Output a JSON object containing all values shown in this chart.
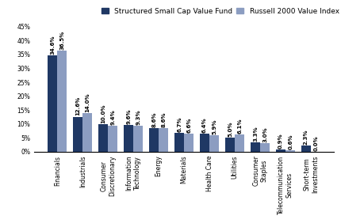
{
  "categories": [
    "Financials",
    "Industrials",
    "Consumer\nDiscretionary",
    "Information\nTechnology",
    "Energy",
    "Materials",
    "Health Care",
    "Utilities",
    "Consumer\nStaples",
    "Telecommunication\nServices",
    "Short-term\nInvestments"
  ],
  "fund_values": [
    34.6,
    12.6,
    10.0,
    9.6,
    8.6,
    6.7,
    6.4,
    5.0,
    3.3,
    0.9,
    2.3
  ],
  "benchmark_values": [
    36.5,
    14.0,
    9.4,
    9.3,
    8.6,
    6.6,
    5.9,
    6.1,
    3.0,
    0.6,
    0.0
  ],
  "fund_color": "#1F3864",
  "benchmark_color": "#8C9DC1",
  "fund_label": "Structured Small Cap Value Fund",
  "benchmark_label": "Russell 2000 Value Index",
  "ylim": [
    0,
    45
  ],
  "yticks": [
    0,
    5,
    10,
    15,
    20,
    25,
    30,
    35,
    40,
    45
  ],
  "ytick_labels": [
    "0%",
    "5%",
    "10%",
    "15%",
    "20%",
    "25%",
    "30%",
    "35%",
    "40%",
    "45%"
  ],
  "bar_width": 0.38,
  "label_fontsize": 5.0,
  "tick_fontsize": 5.5,
  "legend_fontsize": 6.5,
  "background_color": "#FFFFFF"
}
